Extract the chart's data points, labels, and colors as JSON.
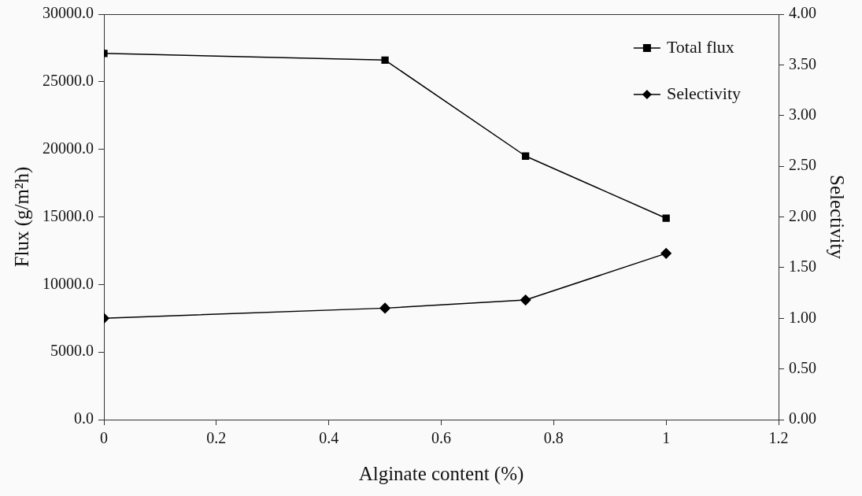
{
  "chart_data": {
    "type": "line",
    "xlabel": "Alginate content (%)",
    "ylabel": "Flux (g/m²h)",
    "y2label": "Selectivity",
    "x": [
      0,
      0.5,
      0.75,
      1
    ],
    "series": [
      {
        "name": "Total flux",
        "color": "#000000",
        "marker": "square",
        "values": [
          27100,
          26600,
          19500,
          14900
        ]
      },
      {
        "name": "Selectivity",
        "color": "#000000",
        "marker": "diamond",
        "axis": "y2",
        "values": [
          1.0,
          1.1,
          1.18,
          1.64
        ]
      }
    ],
    "xlim": [
      0,
      1.2
    ],
    "xticks": [
      0,
      0.2,
      0.4,
      0.6,
      0.8,
      1,
      1.2
    ],
    "ylim": [
      0,
      30000
    ],
    "yticks": [
      {
        "value": 0,
        "label": "0.0"
      },
      {
        "value": 5000,
        "label": "5000.0"
      },
      {
        "value": 10000,
        "label": "10000.0"
      },
      {
        "value": 15000,
        "label": "15000.0"
      },
      {
        "value": 20000,
        "label": "20000.0"
      },
      {
        "value": 25000,
        "label": "25000.0"
      },
      {
        "value": 30000,
        "label": "30000.0"
      }
    ],
    "y2lim": [
      0,
      4
    ],
    "y2ticks": [
      {
        "value": 0,
        "label": "0.00"
      },
      {
        "value": 0.5,
        "label": "0.50"
      },
      {
        "value": 1,
        "label": "1.00"
      },
      {
        "value": 1.5,
        "label": "1.50"
      },
      {
        "value": 2,
        "label": "2.00"
      },
      {
        "value": 2.5,
        "label": "2.50"
      },
      {
        "value": 3,
        "label": "3.00"
      },
      {
        "value": 3.5,
        "label": "3.50"
      },
      {
        "value": 4,
        "label": "4.00"
      }
    ],
    "grid": false,
    "legend": "top right",
    "line_style": "solid"
  }
}
